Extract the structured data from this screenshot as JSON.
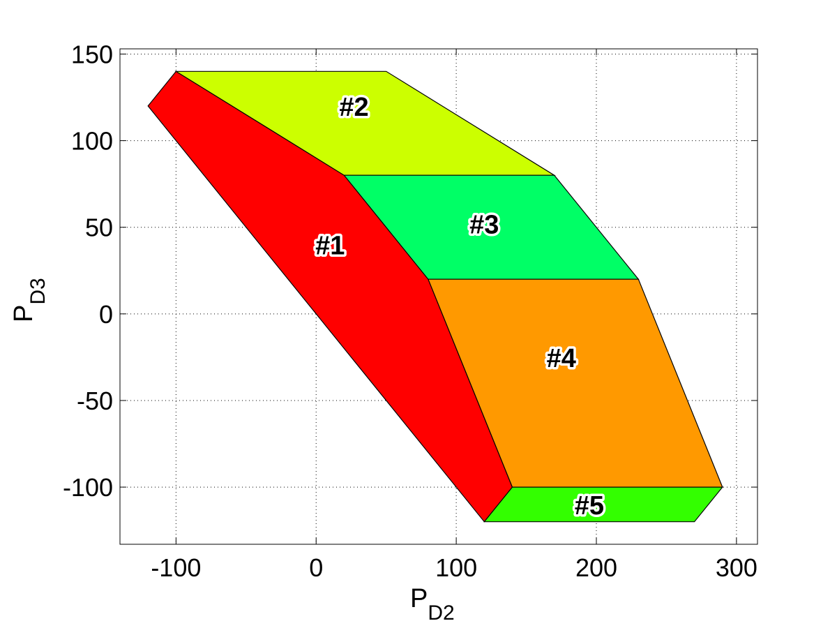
{
  "chart_data": {
    "type": "polygon_regions",
    "xlabel": {
      "main": "P",
      "sub": "D2"
    },
    "ylabel": {
      "main": "P",
      "sub": "D3"
    },
    "xlim": [
      -140,
      315
    ],
    "ylim": [
      -133,
      153
    ],
    "xticks": [
      -100,
      0,
      100,
      200,
      300
    ],
    "yticks": [
      150,
      100,
      50,
      0,
      -50,
      -100
    ],
    "grid": true,
    "regions": [
      {
        "label": "#1",
        "color": "#ff0000",
        "points": [
          [
            -120,
            120
          ],
          [
            -100,
            140
          ],
          [
            20,
            80
          ],
          [
            80,
            20
          ],
          [
            140,
            -100
          ],
          [
            120,
            -120
          ],
          [
            0,
            0
          ]
        ],
        "label_pos": [
          10,
          40
        ]
      },
      {
        "label": "#2",
        "color": "#ccff00",
        "points": [
          [
            -100,
            140
          ],
          [
            50,
            140
          ],
          [
            170,
            80
          ],
          [
            20,
            80
          ]
        ],
        "label_pos": [
          27,
          120
        ]
      },
      {
        "label": "#3",
        "color": "#00ff66",
        "points": [
          [
            20,
            80
          ],
          [
            170,
            80
          ],
          [
            230,
            20
          ],
          [
            80,
            20
          ]
        ],
        "label_pos": [
          120,
          52
        ]
      },
      {
        "label": "#4",
        "color": "#ff9900",
        "points": [
          [
            80,
            20
          ],
          [
            230,
            20
          ],
          [
            290,
            -100
          ],
          [
            140,
            -100
          ]
        ],
        "label_pos": [
          175,
          -25
        ]
      },
      {
        "label": "#5",
        "color": "#33ff00",
        "points": [
          [
            140,
            -100
          ],
          [
            290,
            -100
          ],
          [
            270,
            -120
          ],
          [
            120,
            -120
          ]
        ],
        "label_pos": [
          195,
          -110
        ]
      }
    ]
  }
}
